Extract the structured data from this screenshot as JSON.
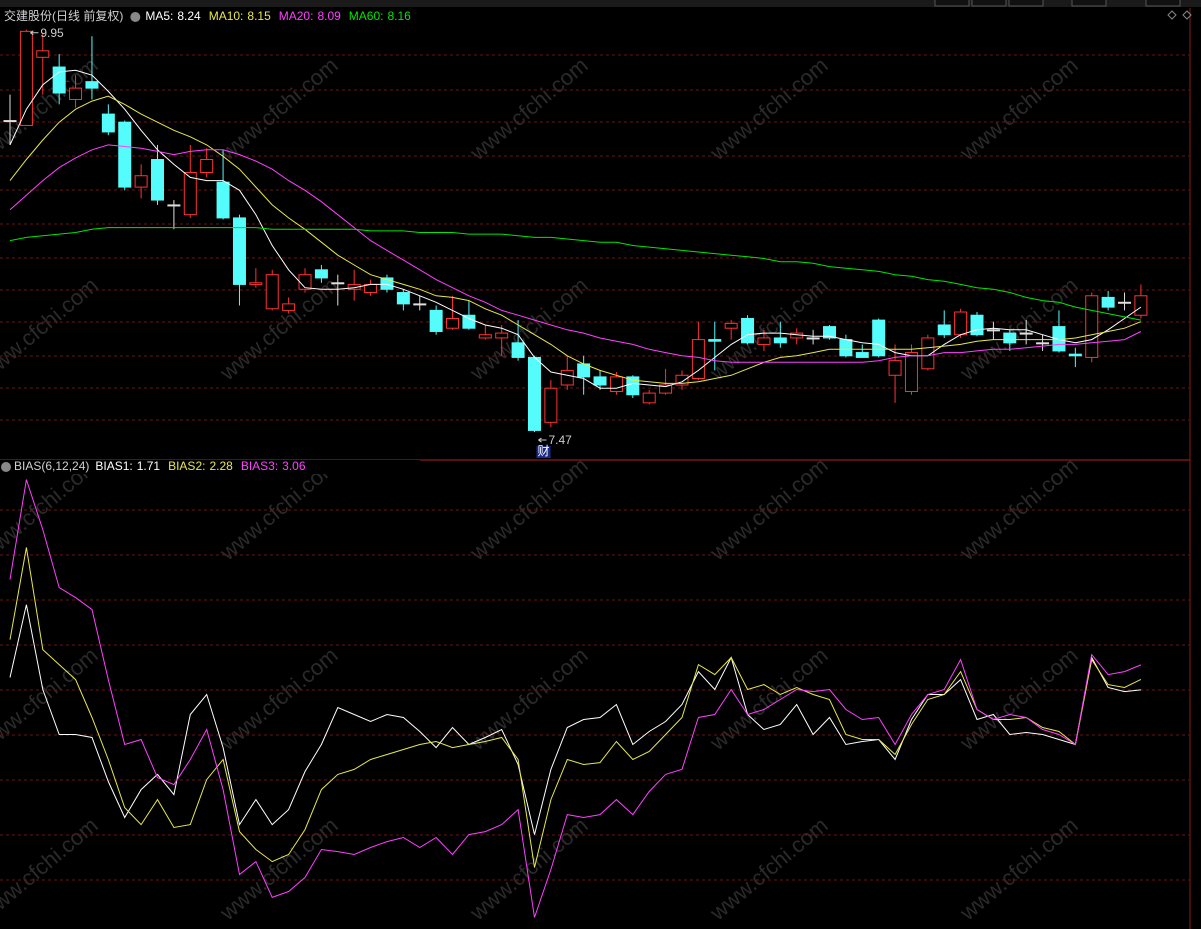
{
  "chart_data": [
    {
      "type": "candlestick",
      "title": "交建股份(日线 前复权)",
      "up_color": "#ff3232",
      "down_color": "#54fcfc",
      "flat_color": "#e0e0e0",
      "ylim": [
        7.31,
        10.01
      ],
      "marker": "财",
      "open": [
        9.39,
        9.36,
        9.78,
        9.72,
        9.52,
        9.63,
        9.43,
        9.38,
        8.98,
        9.15,
        8.87,
        8.81,
        9.07,
        9.01,
        8.79,
        8.38,
        8.23,
        8.22,
        8.35,
        8.47,
        8.39,
        8.35,
        8.33,
        8.42,
        8.33,
        8.26,
        8.22,
        8.11,
        8.19,
        8.05,
        8.05,
        8.02,
        7.93,
        7.53,
        7.76,
        7.89,
        7.81,
        7.72,
        7.81,
        7.65,
        7.71,
        7.76,
        7.8,
        8.04,
        8.11,
        8.17,
        8.01,
        8.05,
        8.05,
        8.05,
        8.12,
        8.04,
        7.96,
        8.16,
        7.82,
        7.72,
        7.86,
        8.13,
        8.07,
        8.19,
        8.1,
        8.08,
        8.08,
        8.02,
        8.12,
        7.95,
        7.93,
        8.3,
        8.27,
        8.19
      ],
      "high": [
        9.55,
        9.95,
        9.93,
        9.8,
        9.67,
        9.91,
        9.49,
        9.39,
        9.12,
        9.24,
        8.9,
        9.24,
        9.22,
        9.21,
        8.81,
        8.48,
        8.47,
        8.3,
        8.48,
        8.5,
        8.44,
        8.47,
        8.41,
        8.44,
        8.35,
        8.31,
        8.25,
        8.31,
        8.28,
        8.13,
        8.13,
        8.16,
        7.94,
        7.79,
        7.94,
        7.94,
        7.85,
        7.84,
        7.82,
        7.73,
        7.86,
        7.85,
        8.15,
        8.15,
        8.16,
        8.19,
        8.1,
        8.15,
        8.11,
        8.1,
        8.13,
        8.07,
        8.01,
        8.17,
        8.01,
        8.01,
        8.07,
        8.22,
        8.23,
        8.21,
        8.15,
        8.1,
        8.16,
        8.07,
        8.22,
        7.99,
        8.33,
        8.34,
        8.33,
        8.38
      ],
      "low": [
        9.24,
        9.36,
        9.55,
        9.49,
        9.47,
        9.52,
        9.3,
        8.96,
        8.91,
        8.87,
        8.72,
        8.79,
        9.04,
        8.78,
        8.25,
        8.36,
        8.22,
        8.2,
        8.33,
        8.39,
        8.25,
        8.28,
        8.31,
        8.33,
        8.22,
        8.22,
        8.07,
        8.1,
        8.1,
        8.04,
        7.94,
        7.91,
        7.47,
        7.5,
        7.73,
        7.7,
        7.73,
        7.7,
        7.68,
        7.64,
        7.7,
        7.73,
        7.79,
        7.85,
        8.04,
        8.01,
        7.97,
        7.99,
        8.01,
        8.01,
        8.04,
        7.93,
        7.93,
        7.93,
        7.65,
        7.7,
        7.85,
        8.05,
        8.05,
        8.06,
        8.04,
        7.97,
        8.01,
        7.97,
        7.96,
        7.87,
        7.9,
        8.22,
        8.22,
        8.17
      ],
      "close": [
        9.39,
        9.94,
        9.82,
        9.56,
        9.59,
        9.59,
        9.32,
        8.98,
        9.05,
        8.9,
        8.87,
        9.07,
        9.15,
        8.79,
        8.38,
        8.39,
        8.44,
        8.26,
        8.44,
        8.42,
        8.39,
        8.38,
        8.38,
        8.35,
        8.26,
        8.26,
        8.09,
        8.17,
        8.11,
        8.07,
        8.08,
        7.93,
        7.48,
        7.74,
        7.85,
        7.81,
        7.76,
        7.81,
        7.7,
        7.71,
        7.76,
        7.82,
        8.04,
        8.03,
        8.14,
        8.02,
        8.05,
        8.02,
        8.08,
        8.05,
        8.05,
        7.94,
        7.93,
        7.94,
        7.91,
        7.96,
        8.05,
        8.07,
        8.21,
        8.07,
        8.1,
        8.02,
        8.08,
        8.02,
        7.97,
        7.94,
        8.31,
        8.24,
        8.27,
        8.31
      ],
      "series": [
        {
          "name": "MA5:",
          "color": "#ffffff",
          "values": [
            9.24,
            9.46,
            9.61,
            9.69,
            9.7,
            9.67,
            9.57,
            9.46,
            9.33,
            9.21,
            9.12,
            9.04,
            9.02,
            9.02,
            8.96,
            8.81,
            8.62,
            8.47,
            8.36,
            8.35,
            8.35,
            8.36,
            8.38,
            8.38,
            8.35,
            8.31,
            8.27,
            8.22,
            8.17,
            8.13,
            8.11,
            8.07,
            7.93,
            7.84,
            7.82,
            7.8,
            7.74,
            7.74,
            7.77,
            7.76,
            7.75,
            7.78,
            7.85,
            7.93,
            8.01,
            8.07,
            8.08,
            8.08,
            8.07,
            8.06,
            8.06,
            8.04,
            8.02,
            8.01,
            7.96,
            7.94,
            7.94,
            8.01,
            8.07,
            8.1,
            8.11,
            8.1,
            8.1,
            8.07,
            8.04,
            8.02,
            8.04,
            8.1,
            8.17,
            8.24
          ]
        },
        {
          "name": "MA10:",
          "color": "#e8e84c",
          "values": [
            9.02,
            9.15,
            9.27,
            9.38,
            9.46,
            9.51,
            9.54,
            9.49,
            9.43,
            9.38,
            9.33,
            9.29,
            9.24,
            9.17,
            9.09,
            8.98,
            8.87,
            8.79,
            8.72,
            8.64,
            8.56,
            8.5,
            8.44,
            8.41,
            8.38,
            8.35,
            8.31,
            8.3,
            8.28,
            8.23,
            8.19,
            8.13,
            8.07,
            8.01,
            7.94,
            7.89,
            7.85,
            7.82,
            7.79,
            7.78,
            7.77,
            7.77,
            7.78,
            7.8,
            7.82,
            7.86,
            7.9,
            7.93,
            7.94,
            7.96,
            7.98,
            7.98,
            7.98,
            7.98,
            7.98,
            7.98,
            7.99,
            8.0,
            8.01,
            8.03,
            8.04,
            8.04,
            8.04,
            8.04,
            8.04,
            8.05,
            8.07,
            8.09,
            8.11,
            8.15
          ]
        },
        {
          "name": "MA20:",
          "color": "#ff40ff",
          "values": [
            8.84,
            8.93,
            9.02,
            9.1,
            9.16,
            9.21,
            9.24,
            9.23,
            9.22,
            9.2,
            9.18,
            9.2,
            9.21,
            9.21,
            9.18,
            9.14,
            9.09,
            9.02,
            8.96,
            8.89,
            8.81,
            8.73,
            8.65,
            8.59,
            8.53,
            8.47,
            8.41,
            8.36,
            8.31,
            8.27,
            8.22,
            8.19,
            8.16,
            8.13,
            8.1,
            8.08,
            8.05,
            8.03,
            8.01,
            7.98,
            7.96,
            7.94,
            7.93,
            7.91,
            7.9,
            7.9,
            7.9,
            7.9,
            7.9,
            7.9,
            7.9,
            7.9,
            7.9,
            7.91,
            7.93,
            7.94,
            7.94,
            7.96,
            7.96,
            7.97,
            7.98,
            7.98,
            7.99,
            8.0,
            8.01,
            8.01,
            8.02,
            8.03,
            8.04,
            8.09
          ]
        },
        {
          "name": "MA60:",
          "color": "#00e600",
          "values": [
            8.65,
            8.67,
            8.68,
            8.69,
            8.7,
            8.72,
            8.73,
            8.73,
            8.73,
            8.73,
            8.73,
            8.73,
            8.73,
            8.73,
            8.73,
            8.73,
            8.72,
            8.72,
            8.72,
            8.72,
            8.72,
            8.72,
            8.71,
            8.71,
            8.71,
            8.7,
            8.7,
            8.7,
            8.69,
            8.69,
            8.69,
            8.68,
            8.67,
            8.67,
            8.66,
            8.65,
            8.64,
            8.64,
            8.62,
            8.61,
            8.6,
            8.59,
            8.58,
            8.57,
            8.56,
            8.55,
            8.54,
            8.52,
            8.52,
            8.51,
            8.49,
            8.48,
            8.47,
            8.46,
            8.44,
            8.43,
            8.41,
            8.4,
            8.38,
            8.36,
            8.35,
            8.33,
            8.3,
            8.28,
            8.27,
            8.24,
            8.22,
            8.2,
            8.18,
            8.16
          ]
        }
      ]
    },
    {
      "type": "line",
      "title": "BIAS(6,12,24)",
      "ylim": [
        -11.0,
        13.6
      ],
      "series": [
        {
          "name": "BIAS1:",
          "color": "#ffffff",
          "values": [
            2.38,
            6.32,
            1.73,
            -0.7,
            -0.7,
            -0.86,
            -3.24,
            -5.19,
            -3.68,
            -2.86,
            -3.95,
            0.38,
            1.46,
            -1.41,
            -5.57,
            -4.22,
            -5.57,
            -4.76,
            -2.7,
            -1.24,
            0.76,
            0.38,
            0.0,
            0.38,
            0.22,
            -0.54,
            -1.41,
            -0.32,
            -1.24,
            -0.86,
            -0.43,
            -2.32,
            -6.11,
            -2.59,
            -0.32,
            0.11,
            0.22,
            0.92,
            -1.24,
            -0.54,
            0.0,
            0.92,
            2.7,
            1.73,
            3.46,
            0.38,
            -0.43,
            -0.16,
            0.92,
            -0.7,
            0.22,
            -1.24,
            -1.08,
            -0.97,
            -2.05,
            0.11,
            1.46,
            1.46,
            2.27,
            0.11,
            0.38,
            -0.7,
            -0.59,
            -0.7,
            -0.97,
            -1.24,
            3.46,
            1.84,
            1.62,
            1.71
          ]
        },
        {
          "name": "BIAS2:",
          "color": "#e8e84c",
          "values": [
            4.43,
            9.41,
            3.89,
            3.08,
            2.27,
            0.22,
            -2.05,
            -4.65,
            -5.57,
            -4.22,
            -5.73,
            -5.57,
            -3.14,
            -2.05,
            -5.95,
            -6.92,
            -7.57,
            -7.19,
            -5.84,
            -3.68,
            -2.86,
            -2.59,
            -2.05,
            -1.78,
            -1.51,
            -1.24,
            -1.08,
            -1.41,
            -1.24,
            -1.08,
            -0.86,
            -2.05,
            -7.89,
            -4.22,
            -2.05,
            -2.32,
            -2.22,
            -1.08,
            -2.05,
            -1.62,
            -0.7,
            0.22,
            3.08,
            2.54,
            3.46,
            1.73,
            2.0,
            1.46,
            1.84,
            1.46,
            1.19,
            -0.7,
            -0.97,
            -0.97,
            -1.78,
            -0.16,
            1.19,
            1.46,
            2.7,
            0.65,
            0.11,
            0.11,
            0.22,
            -0.32,
            -0.54,
            -1.24,
            3.35,
            2.0,
            1.84,
            2.28
          ]
        },
        {
          "name": "BIAS3:",
          "color": "#ff40ff",
          "values": [
            7.68,
            13.08,
            10.38,
            7.24,
            6.7,
            6.05,
            2.27,
            -1.24,
            -0.97,
            -3.03,
            -3.41,
            -2.05,
            -0.43,
            -3.68,
            -8.27,
            -7.57,
            -9.51,
            -9.19,
            -8.43,
            -6.92,
            -7.03,
            -7.19,
            -6.81,
            -6.49,
            -6.27,
            -6.81,
            -6.27,
            -7.19,
            -6.11,
            -5.95,
            -5.57,
            -4.76,
            -10.59,
            -8.0,
            -5.03,
            -5.19,
            -5.03,
            -4.22,
            -5.03,
            -3.78,
            -2.86,
            -2.59,
            0.22,
            0.38,
            1.73,
            0.38,
            0.65,
            1.19,
            1.73,
            1.62,
            1.73,
            0.65,
            0.11,
            0.22,
            -1.24,
            0.38,
            1.46,
            1.73,
            3.35,
            0.65,
            0.11,
            0.38,
            0.22,
            -0.43,
            -0.7,
            -1.24,
            3.62,
            2.54,
            2.7,
            3.06
          ]
        }
      ]
    }
  ],
  "watermark": "www.cfchi.com"
}
